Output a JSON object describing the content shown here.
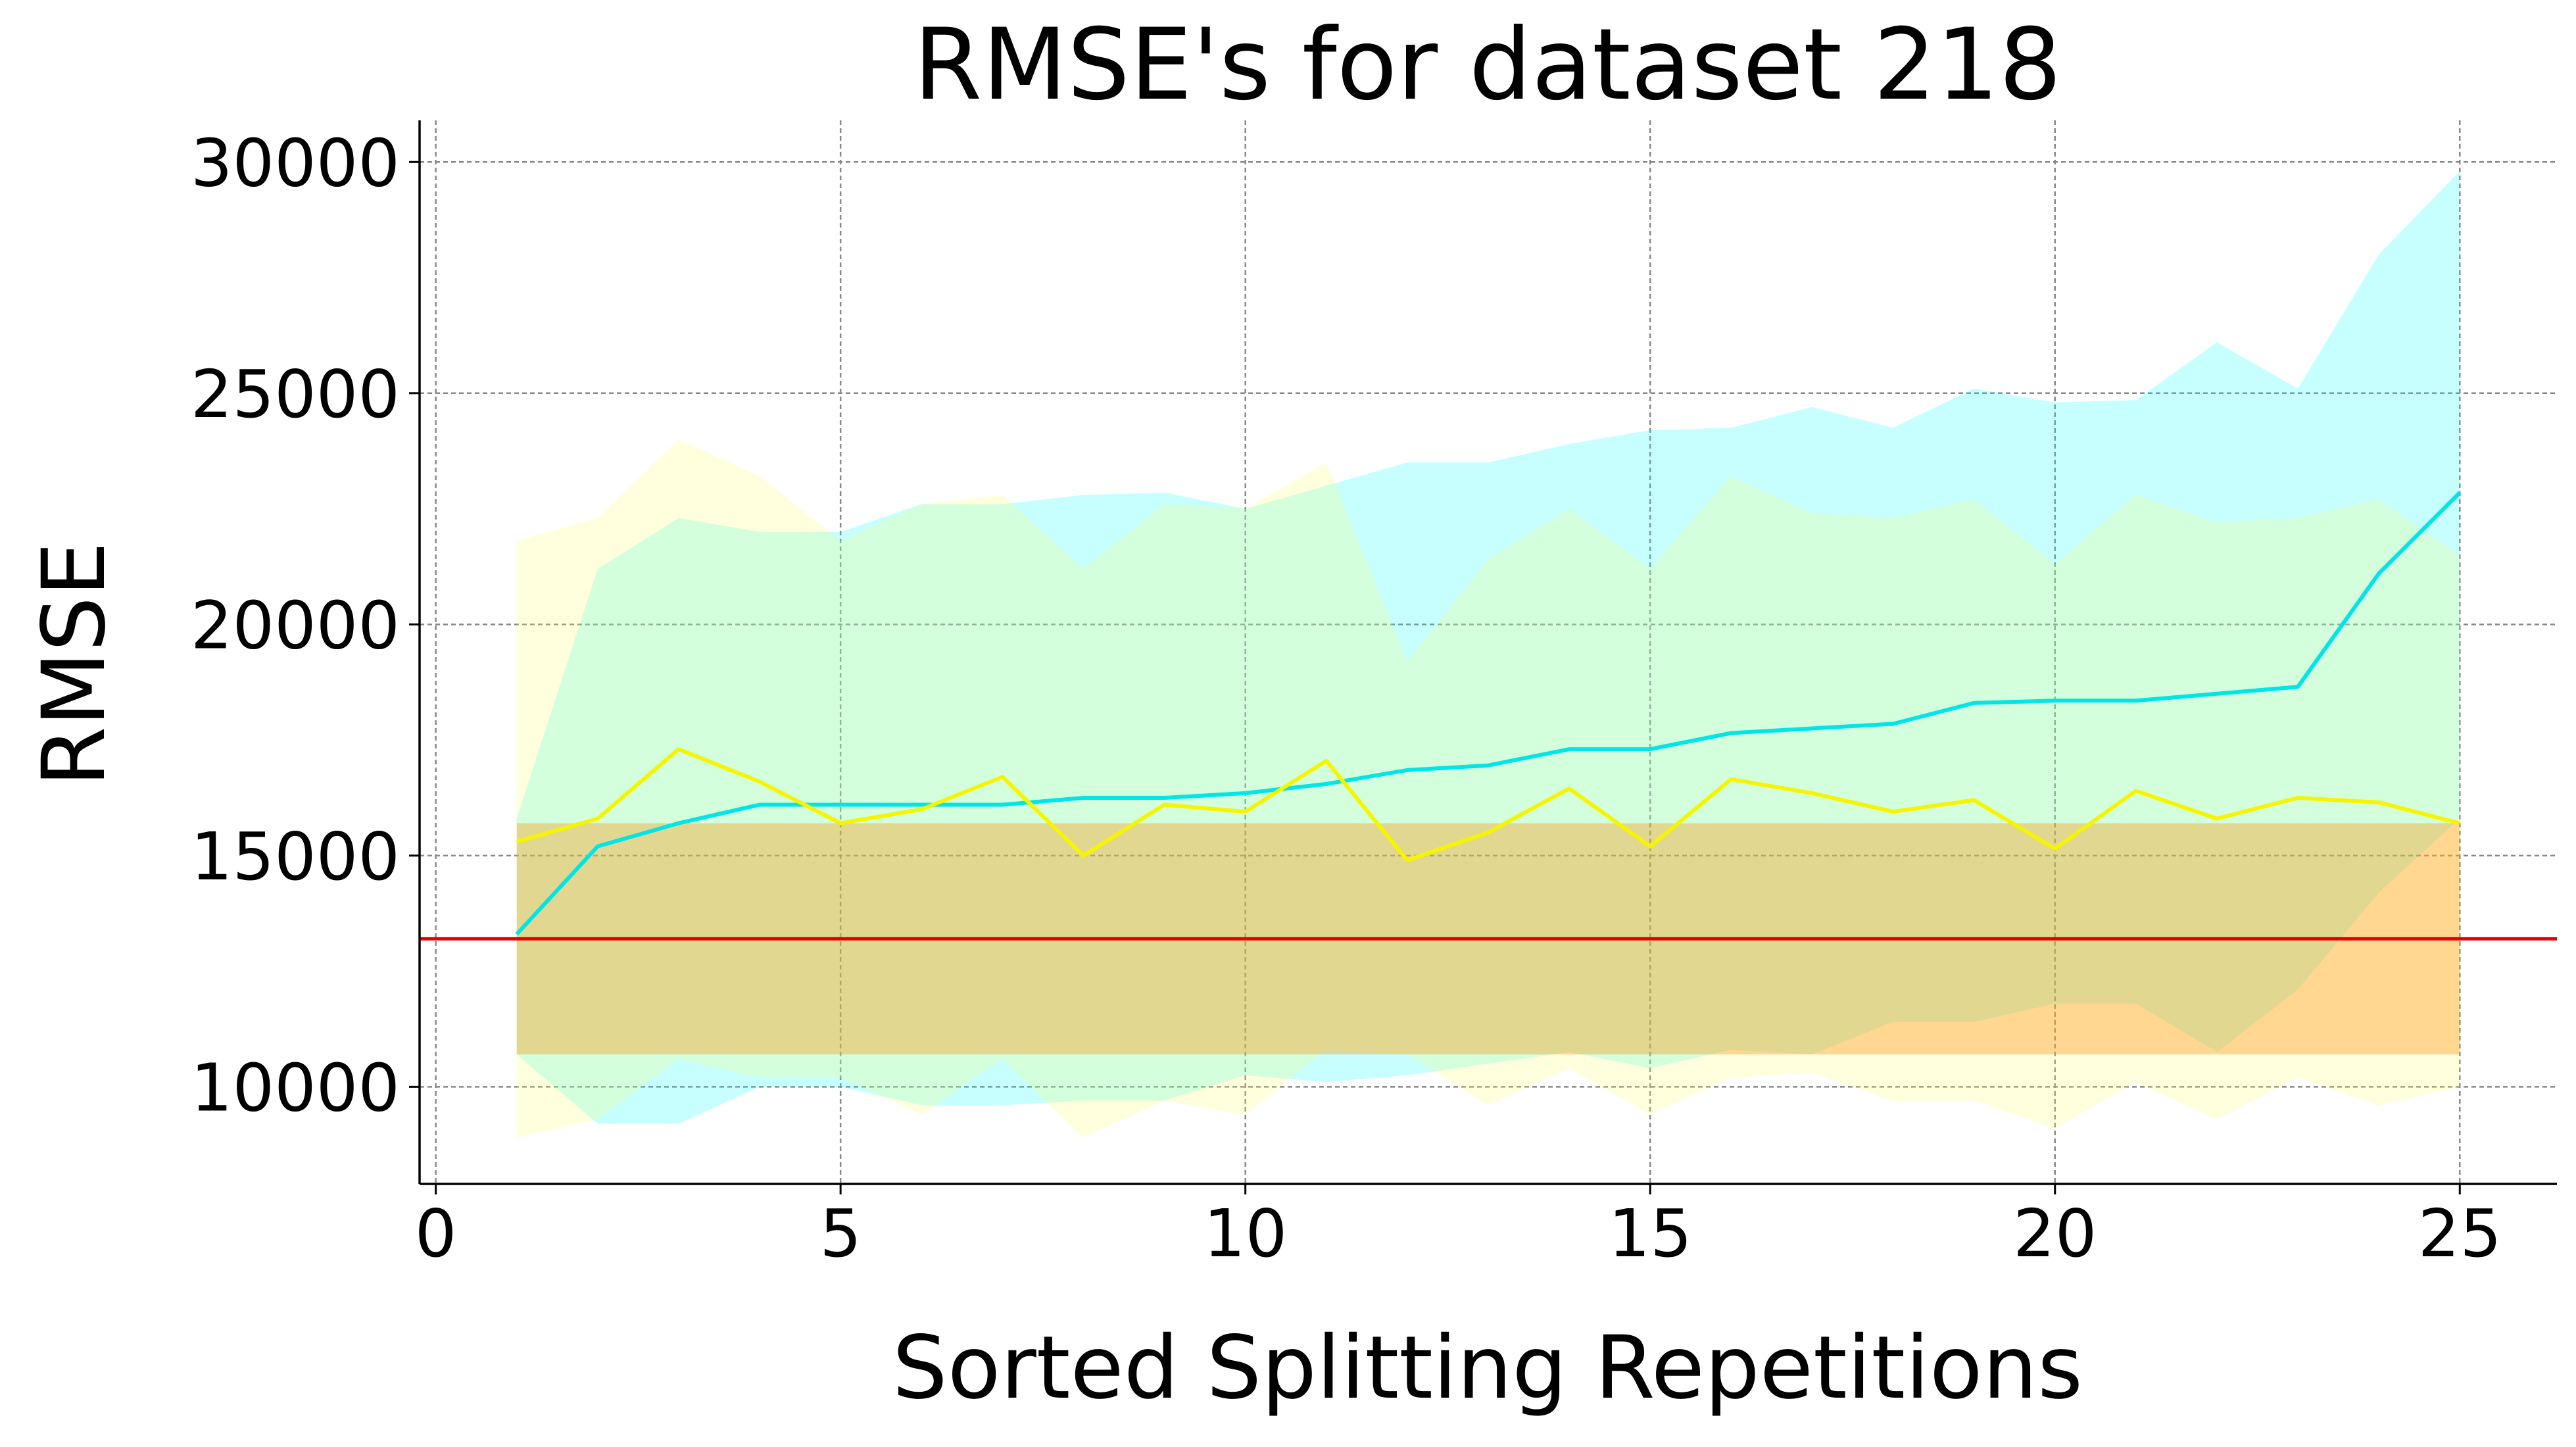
{
  "chart_data": {
    "type": "line",
    "title": "RMSE's for dataset 218",
    "xlabel": "Sorted Splitting Repetitions",
    "ylabel": "RMSE",
    "xlim": [
      -0.2,
      26.2
    ],
    "ylim": [
      7900,
      30900
    ],
    "grid": true,
    "x_ticks": [
      0,
      5,
      10,
      15,
      20,
      25
    ],
    "y_ticks": [
      10000,
      15000,
      20000,
      25000,
      30000
    ],
    "x": [
      1,
      2,
      3,
      4,
      5,
      6,
      7,
      8,
      9,
      10,
      11,
      12,
      13,
      14,
      15,
      16,
      17,
      18,
      19,
      20,
      21,
      22,
      23,
      24,
      25
    ],
    "colors": {
      "cyan_line": "#00e5e5",
      "cyan_band": "#00ffff",
      "yellow_line": "#f5f500",
      "yellow_band": "#ffff66",
      "baseline": "#e60000",
      "baseline_band": "#ff8c00"
    },
    "series": [
      {
        "style": "cyan",
        "values": [
          13300,
          15200,
          15700,
          16100,
          16100,
          16100,
          16100,
          16250,
          16250,
          16350,
          16550,
          16850,
          16950,
          17300,
          17300,
          17650,
          17750,
          17850,
          18300,
          18350,
          18350,
          18500,
          18650,
          21100,
          22850
        ],
        "band_upper": [
          15800,
          21200,
          22300,
          22000,
          22000,
          22600,
          22600,
          22800,
          22850,
          22500,
          23000,
          23500,
          23500,
          23900,
          24200,
          24250,
          24700,
          24250,
          25100,
          24800,
          24850,
          26100,
          25100,
          28000,
          29800
        ],
        "band_lower": [
          10700,
          9200,
          9200,
          10000,
          10000,
          9600,
          9600,
          9700,
          9700,
          10250,
          10100,
          10250,
          10500,
          10750,
          10400,
          10800,
          10700,
          11400,
          11400,
          11800,
          11800,
          10750,
          12100,
          14200,
          15800
        ]
      },
      {
        "style": "yellow",
        "values": [
          15300,
          15800,
          17300,
          16600,
          15700,
          16000,
          16700,
          15000,
          16100,
          15950,
          17050,
          14900,
          15500,
          16450,
          15200,
          16650,
          16350,
          15950,
          16200,
          15150,
          16400,
          15800,
          16250,
          16150,
          15700
        ],
        "band_upper": [
          21800,
          22300,
          24000,
          23200,
          21800,
          22600,
          22800,
          21200,
          22600,
          22500,
          23500,
          19200,
          21400,
          22500,
          21200,
          23200,
          22400,
          22300,
          22700,
          21300,
          22800,
          22200,
          22300,
          22700,
          21500
        ],
        "band_lower": [
          8900,
          9300,
          10600,
          10200,
          10200,
          9400,
          10600,
          8900,
          9700,
          9400,
          10800,
          10700,
          9600,
          10400,
          9400,
          10200,
          10300,
          9700,
          9700,
          9100,
          10100,
          9300,
          10200,
          9600,
          10000
        ]
      }
    ],
    "baseline": {
      "value": 13200,
      "band_upper": 15700,
      "band_lower": 10700,
      "x_start": 1,
      "x_end": 25
    }
  }
}
